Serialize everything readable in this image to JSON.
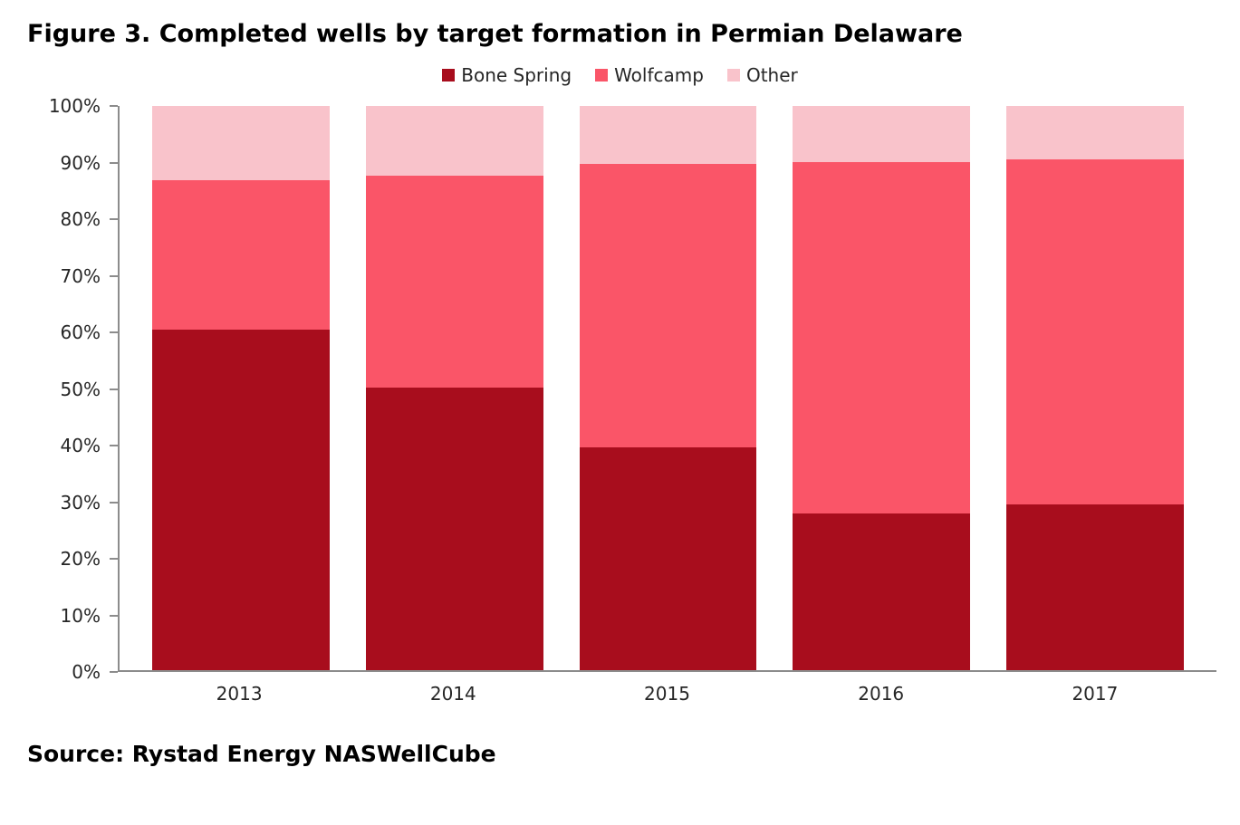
{
  "title": "Figure 3. Completed wells by target formation in Permian Delaware",
  "source": "Source: Rystad Energy NASWellCube",
  "colors": {
    "bone_spring": "#A80D1D",
    "wolfcamp": "#FA5568",
    "other": "#F9C3CB",
    "axis": "#8C8C8C"
  },
  "chart_data": {
    "type": "bar",
    "stacked": true,
    "unit": "percent",
    "title": "Figure 3. Completed wells by target formation in Permian Delaware",
    "categories": [
      "2013",
      "2014",
      "2015",
      "2016",
      "2017"
    ],
    "series": [
      {
        "name": "Bone Spring",
        "color": "#A80D1D",
        "values": [
          60.3,
          50.0,
          39.5,
          27.7,
          29.4
        ]
      },
      {
        "name": "Wolfcamp",
        "color": "#FA5568",
        "values": [
          26.6,
          37.7,
          50.2,
          62.3,
          61.2
        ]
      },
      {
        "name": "Other",
        "color": "#F9C3CB",
        "values": [
          13.1,
          12.3,
          10.3,
          10.0,
          9.4
        ]
      }
    ],
    "xlabel": "",
    "ylabel": "",
    "ylim": [
      0,
      100
    ],
    "y_ticks": [
      "0%",
      "10%",
      "20%",
      "30%",
      "40%",
      "50%",
      "60%",
      "70%",
      "80%",
      "90%",
      "100%"
    ],
    "legend_position": "top",
    "grid": false
  }
}
